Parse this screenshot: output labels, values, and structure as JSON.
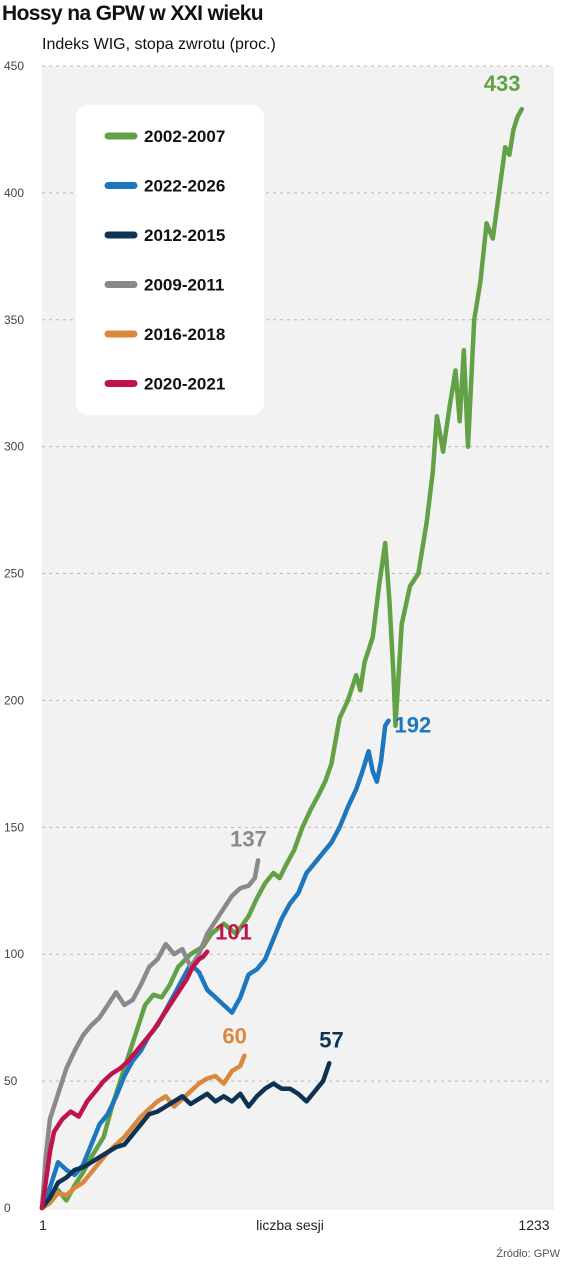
{
  "title": "Hossy na GPW w XXI wieku",
  "subtitle": "Indeks WIG, stopa zwrotu (proc.)",
  "source": "Źródło: GPW",
  "chart_data": {
    "type": "line",
    "xlabel": "liczba sesji",
    "ylabel": "",
    "xlim": [
      1,
      1233
    ],
    "ylim": [
      0,
      450
    ],
    "x_tick_labels": [
      "1",
      "1233"
    ],
    "y_ticks": [
      0,
      50,
      100,
      150,
      200,
      250,
      300,
      350,
      400,
      450
    ],
    "grid": "horizontal dashed",
    "legend_position": "top-left",
    "series": [
      {
        "name": "2002-2007",
        "color": "#62a146",
        "end_label": "433",
        "points": [
          [
            1,
            0
          ],
          [
            20,
            2
          ],
          [
            40,
            7
          ],
          [
            60,
            3
          ],
          [
            80,
            9
          ],
          [
            100,
            14
          ],
          [
            120,
            20
          ],
          [
            150,
            28
          ],
          [
            170,
            40
          ],
          [
            190,
            50
          ],
          [
            210,
            60
          ],
          [
            230,
            70
          ],
          [
            250,
            80
          ],
          [
            270,
            84
          ],
          [
            290,
            83
          ],
          [
            310,
            88
          ],
          [
            330,
            95
          ],
          [
            360,
            100
          ],
          [
            390,
            103
          ],
          [
            410,
            108
          ],
          [
            440,
            112
          ],
          [
            470,
            108
          ],
          [
            500,
            115
          ],
          [
            520,
            122
          ],
          [
            540,
            128
          ],
          [
            560,
            132
          ],
          [
            575,
            130
          ],
          [
            590,
            135
          ],
          [
            610,
            141
          ],
          [
            630,
            150
          ],
          [
            650,
            157
          ],
          [
            670,
            163
          ],
          [
            685,
            168
          ],
          [
            700,
            175
          ],
          [
            720,
            193
          ],
          [
            740,
            200
          ],
          [
            760,
            210
          ],
          [
            770,
            204
          ],
          [
            780,
            215
          ],
          [
            800,
            225
          ],
          [
            815,
            245
          ],
          [
            830,
            262
          ],
          [
            840,
            240
          ],
          [
            850,
            210
          ],
          [
            855,
            190
          ],
          [
            870,
            230
          ],
          [
            890,
            245
          ],
          [
            910,
            250
          ],
          [
            930,
            270
          ],
          [
            945,
            290
          ],
          [
            955,
            312
          ],
          [
            970,
            298
          ],
          [
            985,
            315
          ],
          [
            1000,
            330
          ],
          [
            1010,
            310
          ],
          [
            1020,
            338
          ],
          [
            1030,
            300
          ],
          [
            1045,
            350
          ],
          [
            1060,
            365
          ],
          [
            1075,
            388
          ],
          [
            1090,
            382
          ],
          [
            1105,
            400
          ],
          [
            1120,
            418
          ],
          [
            1130,
            415
          ],
          [
            1140,
            425
          ],
          [
            1150,
            430
          ],
          [
            1160,
            433
          ]
        ]
      },
      {
        "name": "2022-2026",
        "color": "#1d77be",
        "end_label": "192",
        "points": [
          [
            1,
            0
          ],
          [
            20,
            8
          ],
          [
            40,
            18
          ],
          [
            60,
            15
          ],
          [
            80,
            13
          ],
          [
            100,
            17
          ],
          [
            120,
            25
          ],
          [
            140,
            33
          ],
          [
            160,
            37
          ],
          [
            180,
            44
          ],
          [
            200,
            52
          ],
          [
            220,
            58
          ],
          [
            240,
            62
          ],
          [
            260,
            68
          ],
          [
            280,
            72
          ],
          [
            300,
            78
          ],
          [
            320,
            84
          ],
          [
            340,
            90
          ],
          [
            360,
            96
          ],
          [
            380,
            93
          ],
          [
            400,
            86
          ],
          [
            420,
            83
          ],
          [
            440,
            80
          ],
          [
            460,
            77
          ],
          [
            480,
            83
          ],
          [
            500,
            92
          ],
          [
            520,
            94
          ],
          [
            540,
            98
          ],
          [
            560,
            106
          ],
          [
            580,
            114
          ],
          [
            600,
            120
          ],
          [
            620,
            124
          ],
          [
            640,
            132
          ],
          [
            660,
            136
          ],
          [
            680,
            140
          ],
          [
            700,
            144
          ],
          [
            720,
            150
          ],
          [
            740,
            158
          ],
          [
            760,
            165
          ],
          [
            775,
            172
          ],
          [
            790,
            180
          ],
          [
            800,
            172
          ],
          [
            810,
            168
          ],
          [
            820,
            176
          ],
          [
            830,
            190
          ],
          [
            838,
            192
          ]
        ]
      },
      {
        "name": "2012-2015",
        "color": "#0d3253",
        "end_label": "57",
        "points": [
          [
            1,
            0
          ],
          [
            20,
            4
          ],
          [
            40,
            10
          ],
          [
            60,
            12
          ],
          [
            80,
            15
          ],
          [
            100,
            16
          ],
          [
            120,
            18
          ],
          [
            140,
            20
          ],
          [
            160,
            22
          ],
          [
            180,
            24
          ],
          [
            200,
            25
          ],
          [
            220,
            29
          ],
          [
            240,
            33
          ],
          [
            260,
            37
          ],
          [
            280,
            38
          ],
          [
            300,
            40
          ],
          [
            320,
            42
          ],
          [
            340,
            44
          ],
          [
            360,
            41
          ],
          [
            380,
            43
          ],
          [
            400,
            45
          ],
          [
            420,
            42
          ],
          [
            440,
            44
          ],
          [
            460,
            42
          ],
          [
            480,
            45
          ],
          [
            500,
            40
          ],
          [
            520,
            44
          ],
          [
            540,
            47
          ],
          [
            560,
            49
          ],
          [
            580,
            47
          ],
          [
            600,
            47
          ],
          [
            620,
            45
          ],
          [
            640,
            42
          ],
          [
            660,
            46
          ],
          [
            680,
            50
          ],
          [
            695,
            57
          ]
        ]
      },
      {
        "name": "2009-2011",
        "color": "#8a8a8a",
        "end_label": "137",
        "points": [
          [
            1,
            0
          ],
          [
            10,
            20
          ],
          [
            20,
            35
          ],
          [
            40,
            45
          ],
          [
            60,
            55
          ],
          [
            80,
            62
          ],
          [
            100,
            68
          ],
          [
            120,
            72
          ],
          [
            140,
            75
          ],
          [
            160,
            80
          ],
          [
            180,
            85
          ],
          [
            200,
            80
          ],
          [
            220,
            82
          ],
          [
            240,
            88
          ],
          [
            260,
            95
          ],
          [
            280,
            98
          ],
          [
            300,
            104
          ],
          [
            320,
            100
          ],
          [
            340,
            102
          ],
          [
            360,
            95
          ],
          [
            380,
            100
          ],
          [
            400,
            108
          ],
          [
            420,
            113
          ],
          [
            440,
            118
          ],
          [
            460,
            123
          ],
          [
            480,
            126
          ],
          [
            500,
            127
          ],
          [
            515,
            130
          ],
          [
            523,
            137
          ]
        ]
      },
      {
        "name": "2016-2018",
        "color": "#d9883e",
        "end_label": "60",
        "points": [
          [
            1,
            0
          ],
          [
            20,
            2
          ],
          [
            40,
            6
          ],
          [
            60,
            5
          ],
          [
            80,
            8
          ],
          [
            100,
            10
          ],
          [
            120,
            14
          ],
          [
            140,
            18
          ],
          [
            160,
            22
          ],
          [
            180,
            25
          ],
          [
            200,
            28
          ],
          [
            220,
            32
          ],
          [
            240,
            36
          ],
          [
            260,
            39
          ],
          [
            280,
            42
          ],
          [
            300,
            44
          ],
          [
            320,
            40
          ],
          [
            340,
            43
          ],
          [
            360,
            46
          ],
          [
            380,
            49
          ],
          [
            400,
            51
          ],
          [
            420,
            52
          ],
          [
            440,
            49
          ],
          [
            460,
            54
          ],
          [
            480,
            56
          ],
          [
            490,
            60
          ]
        ]
      },
      {
        "name": "2020-2021",
        "color": "#c1134b",
        "end_label": "101",
        "points": [
          [
            1,
            0
          ],
          [
            10,
            10
          ],
          [
            20,
            22
          ],
          [
            30,
            30
          ],
          [
            50,
            35
          ],
          [
            70,
            38
          ],
          [
            90,
            36
          ],
          [
            110,
            42
          ],
          [
            130,
            46
          ],
          [
            150,
            50
          ],
          [
            170,
            53
          ],
          [
            190,
            55
          ],
          [
            210,
            58
          ],
          [
            230,
            62
          ],
          [
            250,
            66
          ],
          [
            270,
            70
          ],
          [
            290,
            75
          ],
          [
            310,
            80
          ],
          [
            330,
            85
          ],
          [
            350,
            90
          ],
          [
            365,
            95
          ],
          [
            380,
            98
          ],
          [
            390,
            99
          ],
          [
            400,
            101
          ]
        ]
      }
    ]
  }
}
